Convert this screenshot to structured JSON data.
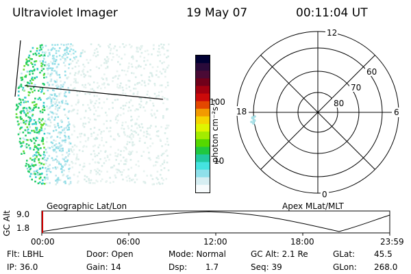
{
  "header": {
    "instrument": "Ultraviolet Imager",
    "date": "19 May 07",
    "time": "00:11:04 UT"
  },
  "colorbar": {
    "unit_label": "photon cm⁻²s⁻¹",
    "tick_labels": [
      "100",
      "10"
    ],
    "colors": [
      "#000033",
      "#2a0a3a",
      "#4a0a35",
      "#70001a",
      "#a30010",
      "#cc0a0a",
      "#e44700",
      "#f29a00",
      "#f5d400",
      "#dff500",
      "#a3ec00",
      "#55d800",
      "#20c840",
      "#22c9a0",
      "#45e3e0",
      "#8fe0ea",
      "#d6eef2",
      "#f7fbfc"
    ]
  },
  "earth_image": {
    "label": "Geographic Lat/Lon"
  },
  "polar_plot": {
    "label": "Apex MLat/MLT",
    "mlt_labels": {
      "top": "12",
      "right": "6",
      "bottom": "0",
      "left": "18"
    },
    "lat_labels": [
      "60",
      "70",
      "80"
    ]
  },
  "timeline": {
    "ylabel": "GC Alt",
    "y_ticks": [
      "9.0",
      "1.8"
    ],
    "x_ticks": [
      "00:00",
      "06:00",
      "12:00",
      "18:00",
      "23:59"
    ],
    "cursor_color": "#cc0000"
  },
  "info": {
    "flt": "Flt: LBHL",
    "door": "Door: Open",
    "mode": "Mode: Normal",
    "gc_alt": "GC Alt: 2.1 Re",
    "glat_label": "GLat:",
    "glat_value": "45.5",
    "ip": "IP: 36.0",
    "gain": "Gain: 14",
    "dsp_label": "Dsp:",
    "dsp_value": "1.7",
    "seq": "Seq: 39",
    "glon_label": "GLon:",
    "glon_value": "268.0"
  }
}
